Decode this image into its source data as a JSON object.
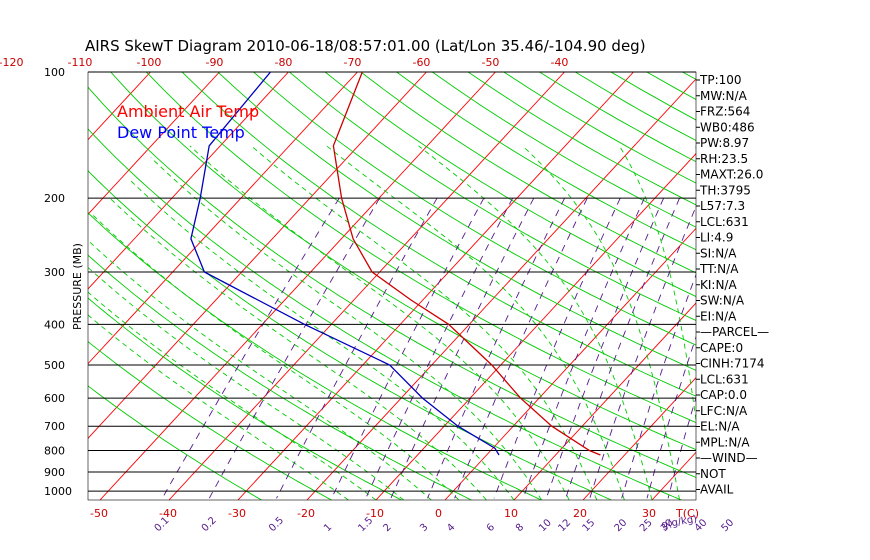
{
  "chart_data": {
    "type": "line",
    "title": "AIRS SkewT Diagram 2010-06-18/08:57:01.00 (Lat/Lon 35.46/-104.90 deg)",
    "ylabel": "PRESSURE (MB)",
    "xlabel_unit": "T(C)",
    "mixing_ratio_unit": "g(g/kg)",
    "y_scale": "log",
    "y_ticks": [
      100,
      200,
      300,
      400,
      500,
      600,
      700,
      800,
      900,
      1000
    ],
    "x_ticks_bottom": [
      -50,
      -40,
      -30,
      -20,
      -10,
      0,
      10,
      20,
      30
    ],
    "x_ticks_top": [
      -120,
      -110,
      -100,
      -90,
      -80,
      -70,
      -60,
      -50,
      -40
    ],
    "mixing_ratio_labels": [
      "0.1",
      "0.2",
      "0.5",
      "1",
      "1.5",
      "2",
      "3",
      "4",
      "6",
      "8",
      "10",
      "12",
      "15",
      "20",
      "25",
      "30",
      "40",
      "50"
    ],
    "legend": [
      {
        "name": "Ambient Air Temp",
        "color": "#ff0000"
      },
      {
        "name": "Dew Point Temp",
        "color": "#0000ff"
      }
    ],
    "series": [
      {
        "name": "Ambient Air Temp",
        "color": "#cc0000",
        "points": [
          {
            "p": 100,
            "t": -69.3
          },
          {
            "p": 150,
            "t": -63.6
          },
          {
            "p": 200,
            "t": -55.4
          },
          {
            "p": 250,
            "t": -48.3
          },
          {
            "p": 300,
            "t": -41.1
          },
          {
            "p": 350,
            "t": -31.7
          },
          {
            "p": 400,
            "t": -23.0
          },
          {
            "p": 500,
            "t": -11.3
          },
          {
            "p": 600,
            "t": -2.7
          },
          {
            "p": 700,
            "t": 5.6
          },
          {
            "p": 800,
            "t": 14.3
          },
          {
            "p": 820,
            "t": 16.5
          }
        ]
      },
      {
        "name": "Dew Point Temp",
        "color": "#0000bb",
        "points": [
          {
            "p": 100,
            "t": -82.6
          },
          {
            "p": 150,
            "t": -81.6
          },
          {
            "p": 200,
            "t": -75.9
          },
          {
            "p": 250,
            "t": -71.8
          },
          {
            "p": 300,
            "t": -65.4
          },
          {
            "p": 400,
            "t": -43.9
          },
          {
            "p": 500,
            "t": -26.1
          },
          {
            "p": 600,
            "t": -16.9
          },
          {
            "p": 700,
            "t": -8.0
          },
          {
            "p": 790,
            "t": 0.3
          },
          {
            "p": 820,
            "t": 1.8
          }
        ]
      }
    ]
  },
  "side_panel": {
    "items": [
      "TP:100",
      "MW:N/A",
      "FRZ:564",
      "WB0:486",
      "PW:8.97",
      "RH:23.5",
      "MAXT:26.0",
      "TH:3795",
      "L57:7.3",
      "LCL:631",
      "LI:4.9",
      "SI:N/A",
      "TT:N/A",
      "KI:N/A",
      "SW:N/A",
      "EI:N/A",
      "—PARCEL—",
      "CAPE:0",
      "CINH:7174",
      "LCL:631",
      "CAP:0.0",
      "LFC:N/A",
      "EL:N/A",
      "MPL:N/A",
      "—WIND—",
      "NOT",
      "AVAIL"
    ]
  },
  "colors": {
    "isotherm": "#ff0000",
    "dry_adiabat": "#00cc00",
    "moist_adiabat": "#00cc00",
    "mixing_ratio": "#551a8b",
    "isobar": "#000000"
  }
}
